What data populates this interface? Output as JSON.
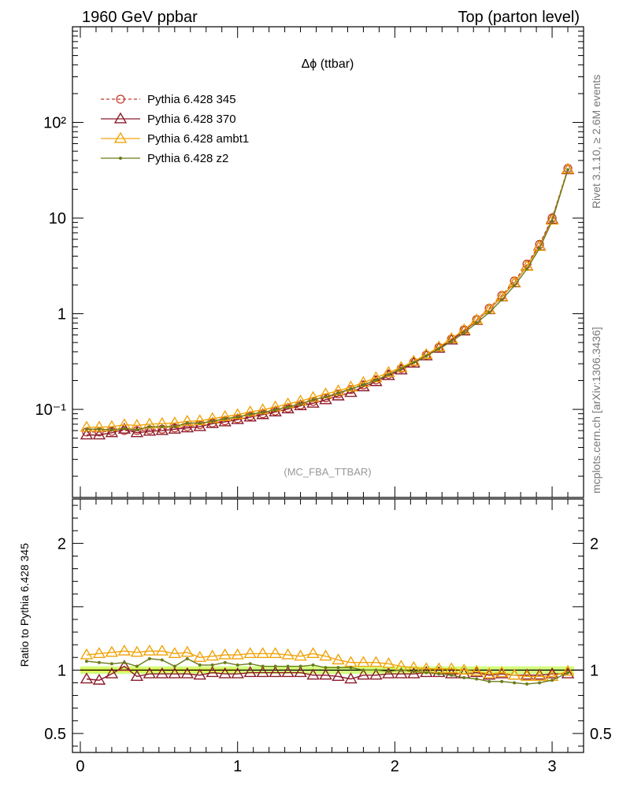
{
  "header": {
    "left": "1960 GeV ppbar",
    "right": "Top (parton level)"
  },
  "side_labels": {
    "rivet": "Rivet 3.1.10, ≥ 2.6M events",
    "source": "mcplots.cern.ch [arXiv:1306.3436]"
  },
  "analysis_tag": "(MC_FBA_TTBAR)",
  "colors": {
    "p345": "#c0392b",
    "p370": "#8b1a2b",
    "ambt1": "#f0a30a",
    "z2": "#6b7a1a",
    "ref_band": "#ccff66"
  },
  "chart_data": [
    {
      "type": "line",
      "title": "Δϕ (ttbar)",
      "xlim": [
        -0.05,
        3.2
      ],
      "ylog": true,
      "ylim": [
        0.012,
        1000
      ],
      "y_ticks": [
        "10⁻¹",
        "1",
        "10",
        "10²"
      ],
      "legend_position": "top-left",
      "x": [
        0.04,
        0.12,
        0.2,
        0.28,
        0.36,
        0.44,
        0.52,
        0.6,
        0.68,
        0.76,
        0.84,
        0.92,
        1.0,
        1.08,
        1.16,
        1.24,
        1.32,
        1.4,
        1.48,
        1.56,
        1.64,
        1.72,
        1.8,
        1.88,
        1.96,
        2.04,
        2.12,
        2.2,
        2.28,
        2.36,
        2.44,
        2.52,
        2.6,
        2.68,
        2.76,
        2.84,
        2.92,
        3.0,
        3.1
      ],
      "series": [
        {
          "name": "Pythia 6.428 345",
          "color_key": "p345",
          "marker": "circle",
          "dash": true,
          "values": [
            0.058,
            0.058,
            0.059,
            0.06,
            0.06,
            0.061,
            0.062,
            0.064,
            0.066,
            0.069,
            0.072,
            0.076,
            0.08,
            0.085,
            0.09,
            0.096,
            0.103,
            0.111,
            0.121,
            0.132,
            0.145,
            0.161,
            0.18,
            0.203,
            0.232,
            0.267,
            0.312,
            0.37,
            0.445,
            0.545,
            0.68,
            0.87,
            1.14,
            1.55,
            2.2,
            3.3,
            5.3,
            10.0,
            33.0
          ]
        },
        {
          "name": "Pythia 6.428 370",
          "color_key": "p370",
          "marker": "triangle-open",
          "dash": false,
          "values": [
            0.054,
            0.054,
            0.057,
            0.062,
            0.057,
            0.059,
            0.06,
            0.062,
            0.064,
            0.066,
            0.071,
            0.074,
            0.078,
            0.083,
            0.088,
            0.094,
            0.101,
            0.109,
            0.116,
            0.126,
            0.138,
            0.15,
            0.172,
            0.195,
            0.225,
            0.258,
            0.304,
            0.362,
            0.435,
            0.53,
            0.66,
            0.85,
            1.1,
            1.5,
            2.1,
            3.15,
            5.1,
            9.7,
            32.0
          ]
        },
        {
          "name": "Pythia 6.428 ambt1",
          "color_key": "ambt1",
          "marker": "triangle-open",
          "dash": false,
          "values": [
            0.065,
            0.065,
            0.066,
            0.069,
            0.068,
            0.07,
            0.071,
            0.072,
            0.075,
            0.076,
            0.08,
            0.084,
            0.088,
            0.094,
            0.099,
            0.106,
            0.114,
            0.122,
            0.133,
            0.145,
            0.156,
            0.171,
            0.191,
            0.214,
            0.243,
            0.274,
            0.318,
            0.374,
            0.449,
            0.549,
            0.678,
            0.86,
            1.11,
            1.51,
            2.12,
            3.13,
            5.04,
            9.5,
            32.5
          ]
        },
        {
          "name": "Pythia 6.428 z2",
          "color_key": "z2",
          "marker": "dot",
          "dash": false,
          "values": [
            0.062,
            0.062,
            0.061,
            0.063,
            0.061,
            0.066,
            0.066,
            0.066,
            0.072,
            0.072,
            0.075,
            0.08,
            0.083,
            0.089,
            0.093,
            0.099,
            0.106,
            0.114,
            0.126,
            0.135,
            0.148,
            0.164,
            0.18,
            0.203,
            0.23,
            0.267,
            0.309,
            0.361,
            0.429,
            0.512,
            0.632,
            0.801,
            1.03,
            1.4,
            1.96,
            2.94,
            4.82,
            9.3,
            32.0
          ]
        }
      ]
    },
    {
      "type": "line",
      "ylabel": "Ratio to Pythia 6.428 345",
      "xlim": [
        -0.05,
        3.2
      ],
      "ylim": [
        0.35,
        2.35
      ],
      "x_ticks": [
        "0",
        "1",
        "2",
        "3"
      ],
      "y_ticks": [
        "0.5",
        "1",
        "2"
      ],
      "x": [
        0.04,
        0.12,
        0.2,
        0.28,
        0.36,
        0.44,
        0.52,
        0.6,
        0.68,
        0.76,
        0.84,
        0.92,
        1.0,
        1.08,
        1.16,
        1.24,
        1.32,
        1.4,
        1.48,
        1.56,
        1.64,
        1.72,
        1.8,
        1.88,
        1.96,
        2.04,
        2.12,
        2.2,
        2.28,
        2.36,
        2.44,
        2.52,
        2.6,
        2.68,
        2.76,
        2.84,
        2.92,
        3.0,
        3.1
      ],
      "reference_band": [
        0.97,
        1.03
      ],
      "series": [
        {
          "name": "Pythia 6.428 370",
          "color_key": "p370",
          "marker": "triangle-open",
          "values": [
            0.93,
            0.92,
            0.97,
            1.03,
            0.95,
            0.97,
            0.97,
            0.97,
            0.97,
            0.96,
            0.98,
            0.97,
            0.97,
            0.98,
            0.98,
            0.98,
            0.98,
            0.98,
            0.96,
            0.96,
            0.95,
            0.93,
            0.96,
            0.96,
            0.97,
            0.97,
            0.97,
            0.98,
            0.98,
            0.97,
            0.97,
            0.98,
            0.96,
            0.97,
            0.96,
            0.96,
            0.96,
            0.97,
            0.97
          ]
        },
        {
          "name": "Pythia 6.428 ambt1",
          "color_key": "ambt1",
          "marker": "triangle-open",
          "values": [
            1.12,
            1.13,
            1.14,
            1.15,
            1.14,
            1.15,
            1.15,
            1.13,
            1.14,
            1.1,
            1.11,
            1.12,
            1.12,
            1.13,
            1.13,
            1.13,
            1.12,
            1.11,
            1.13,
            1.11,
            1.08,
            1.06,
            1.06,
            1.06,
            1.05,
            1.03,
            1.02,
            1.01,
            1.01,
            1.01,
            1.0,
            0.99,
            0.97,
            0.98,
            0.96,
            0.95,
            0.95,
            0.95,
            0.99
          ]
        },
        {
          "name": "Pythia 6.428 z2",
          "color_key": "z2",
          "marker": "dot",
          "values": [
            1.07,
            1.06,
            1.05,
            1.06,
            1.03,
            1.09,
            1.08,
            1.03,
            1.09,
            1.04,
            1.04,
            1.06,
            1.04,
            1.05,
            1.03,
            1.03,
            1.03,
            1.03,
            1.04,
            1.02,
            1.02,
            1.02,
            1.0,
            1.0,
            0.99,
            1.0,
            0.99,
            0.98,
            0.97,
            0.96,
            0.94,
            0.93,
            0.91,
            0.91,
            0.9,
            0.89,
            0.9,
            0.92,
            0.98
          ]
        }
      ]
    }
  ]
}
